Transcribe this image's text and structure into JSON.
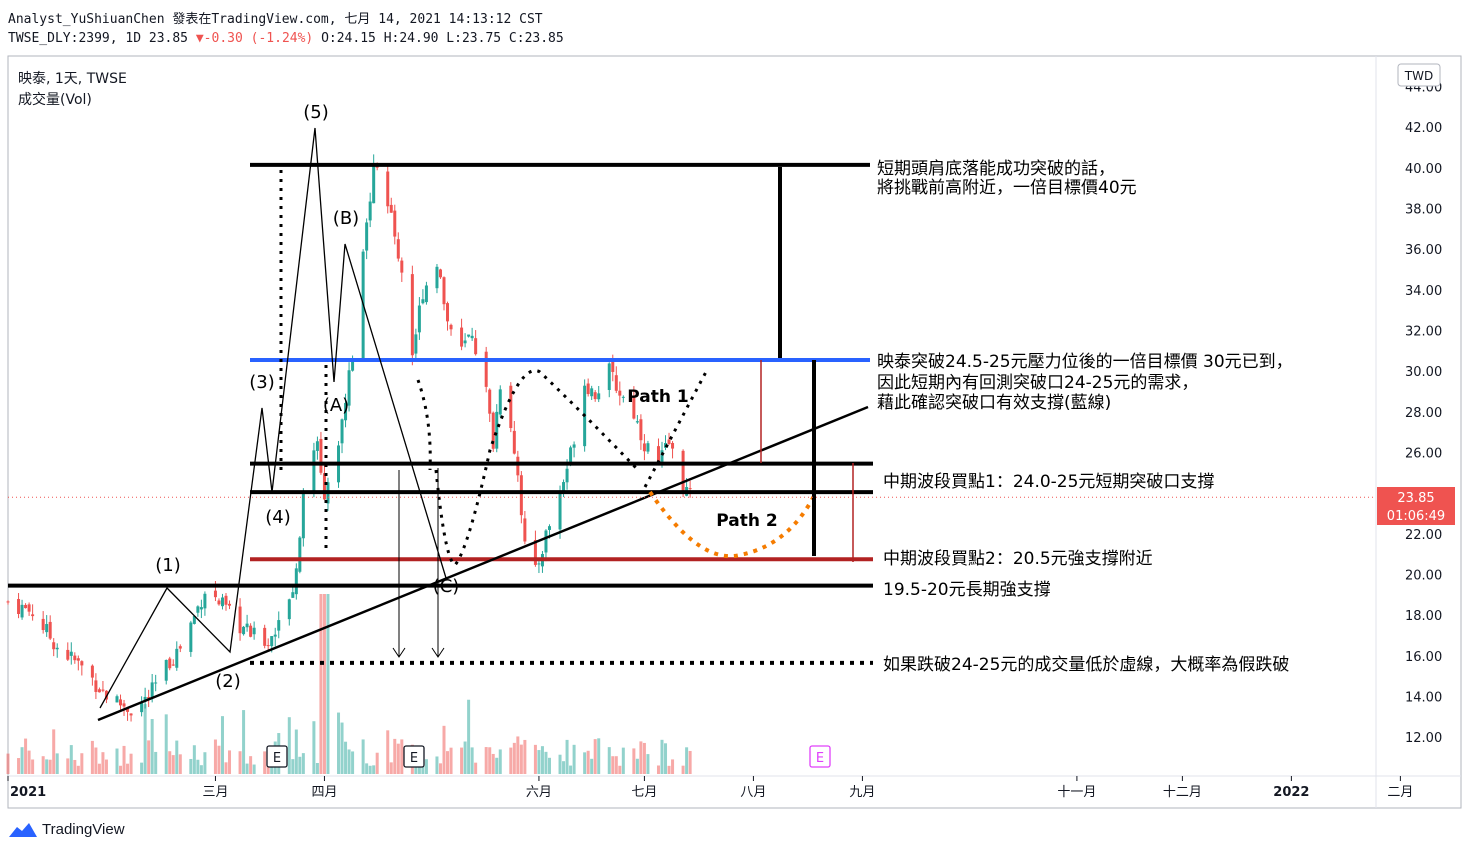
{
  "header": {
    "line1": "Analyst_YuShiuanChen 發表在TradingView.com, 七月 14, 2021 14:13:12 CST",
    "symbol": "TWSE_DLY:2399, 1D 23.85",
    "change_arrow": "▼",
    "change": "-0.30 (-1.24%)",
    "ohlc": "O:24.15 H:24.90 L:23.75 C:23.85"
  },
  "legend": {
    "title": "映泰, 1天, TWSE",
    "volume_label": "成交量(Vol)"
  },
  "currency": "TWD",
  "last_price": "23.85",
  "countdown": "01:06:49",
  "brand": "TradingView",
  "colors": {
    "up": "#26a69a",
    "down": "#ef5350",
    "blue_line": "#2962ff",
    "red_line": "#b22222",
    "orange": "#f57c00",
    "black": "#000000"
  },
  "chart_data": {
    "type": "candlestick",
    "title": "",
    "y_axis": {
      "ticks": [
        "44.00",
        "42.00",
        "40.00",
        "38.00",
        "36.00",
        "34.00",
        "32.00",
        "30.00",
        "28.00",
        "26.00",
        "24.00",
        "22.00",
        "20.00",
        "18.00",
        "16.00",
        "14.00",
        "12.00"
      ],
      "ylim": [
        11.3,
        44.4
      ],
      "side": "right"
    },
    "x_axis": {
      "labels": [
        {
          "text": "2021",
          "date": "2021-01-01"
        },
        {
          "text": "三月",
          "date": "2021-03-01"
        },
        {
          "text": "四月",
          "date": "2021-04-01"
        },
        {
          "text": "六月",
          "date": "2021-06-01"
        },
        {
          "text": "七月",
          "date": "2021-07-01"
        },
        {
          "text": "八月",
          "date": "2021-08-01"
        },
        {
          "text": "九月",
          "date": "2021-09-01"
        },
        {
          "text": "十一月",
          "date": "2021-11-01"
        },
        {
          "text": "十二月",
          "date": "2021-12-01"
        },
        {
          "text": "2022",
          "date": "2022-01-01"
        },
        {
          "text": "二月",
          "date": "2022-02-01"
        }
      ],
      "range": [
        "2021-01-01",
        "2022-02-08"
      ]
    },
    "price_path": [
      [
        "2021-01-01",
        18.7
      ],
      [
        "2021-01-08",
        18.2
      ],
      [
        "2021-01-15",
        16.5
      ],
      [
        "2021-01-22",
        15.5
      ],
      [
        "2021-01-29",
        14.1
      ],
      [
        "2021-02-05",
        13.4
      ],
      [
        "2021-02-10",
        14.0
      ],
      [
        "2021-02-15",
        15.5
      ],
      [
        "2021-02-19",
        16.5
      ],
      [
        "2021-02-23",
        18.0
      ],
      [
        "2021-02-26",
        19.3
      ],
      [
        "2021-03-03",
        18.5
      ],
      [
        "2021-03-08",
        17.5
      ],
      [
        "2021-03-12",
        17.0
      ],
      [
        "2021-03-16",
        16.8
      ],
      [
        "2021-03-19",
        17.5
      ],
      [
        "2021-03-23",
        19.5
      ],
      [
        "2021-03-25",
        22.0
      ],
      [
        "2021-03-26",
        24.5
      ],
      [
        "2021-03-30",
        26.5
      ],
      [
        "2021-04-01",
        24.1
      ],
      [
        "2021-04-06",
        27.5
      ],
      [
        "2021-04-09",
        31.0
      ],
      [
        "2021-04-12",
        35.5
      ],
      [
        "2021-04-15",
        40.5
      ],
      [
        "2021-04-17",
        39.5
      ],
      [
        "2021-04-20",
        37.5
      ],
      [
        "2021-04-23",
        35.0
      ],
      [
        "2021-04-26",
        31.0
      ],
      [
        "2021-04-29",
        34.0
      ],
      [
        "2021-05-03",
        35.5
      ],
      [
        "2021-05-06",
        32.5
      ],
      [
        "2021-05-10",
        31.0
      ],
      [
        "2021-05-13",
        32.0
      ],
      [
        "2021-05-17",
        29.0
      ],
      [
        "2021-05-19",
        26.5
      ],
      [
        "2021-05-21",
        29.5
      ],
      [
        "2021-05-24",
        27.5
      ],
      [
        "2021-05-26",
        25.0
      ],
      [
        "2021-05-28",
        21.5
      ],
      [
        "2021-05-31",
        20.1
      ],
      [
        "2021-06-03",
        22.0
      ],
      [
        "2021-06-07",
        24.0
      ],
      [
        "2021-06-10",
        26.0
      ],
      [
        "2021-06-14",
        29.5
      ],
      [
        "2021-06-17",
        29.0
      ],
      [
        "2021-06-21",
        30.0
      ],
      [
        "2021-06-24",
        29.0
      ],
      [
        "2021-06-28",
        28.0
      ],
      [
        "2021-07-01",
        26.5
      ],
      [
        "2021-07-05",
        25.5
      ],
      [
        "2021-07-08",
        26.5
      ],
      [
        "2021-07-12",
        24.5
      ],
      [
        "2021-07-14",
        23.85
      ]
    ],
    "volume_max_index": "2021-04-01",
    "horizontal_levels": [
      {
        "price": 40.2,
        "color": "black",
        "style": "solid"
      },
      {
        "price": 30.6,
        "color": "blue",
        "style": "solid"
      },
      {
        "price": 25.5,
        "color": "black",
        "style": "solid"
      },
      {
        "price": 24.1,
        "color": "black",
        "style": "solid"
      },
      {
        "price": 20.8,
        "color": "red",
        "style": "solid"
      },
      {
        "price": 19.5,
        "color": "black",
        "style": "solid"
      },
      {
        "price": 15.7,
        "color": "black",
        "style": "dotted"
      }
    ],
    "wave_labels": [
      "(1)",
      "(2)",
      "(3)",
      "(4)",
      "(5)",
      "(A)",
      "(B)",
      "(C)"
    ],
    "path_labels": [
      "Path 1",
      "Path 2"
    ],
    "annotations": [
      "短期頭肩底落能成功突破的話，",
      "將挑戰前高附近，一倍目標價40元",
      "映泰突破24.5-25元壓力位後的一倍目標價 30元已到，",
      "因此短期內有回測突破口24-25元的需求，",
      "藉此確認突破口有效支撐(藍線)",
      "中期波段買點1：24.0-25元短期突破口支撐",
      "中期波段買點2：20.5元強支撐附近",
      "19.5-20元長期強支撐",
      "如果跌破24-25元的成交量低於虛線，大概率為假跌破"
    ],
    "earnings_markers": [
      "E",
      "E",
      "E"
    ]
  }
}
